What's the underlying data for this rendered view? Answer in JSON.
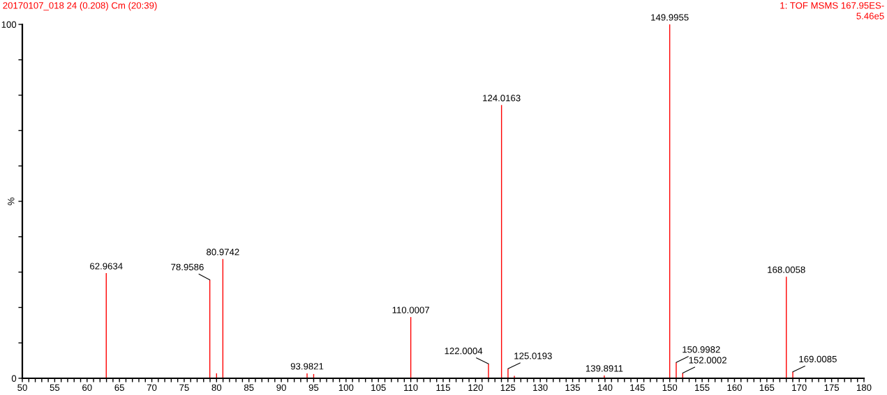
{
  "chart_data": {
    "type": "bar",
    "title": "20170107_018 24 (0.208) Cm (20:39)",
    "subtitle": "1: TOF MSMS 167.95ES-\n5.46e5",
    "ylabel": "%",
    "x": [
      62.9634,
      78.9586,
      80.0,
      80.9742,
      93.9821,
      95.0,
      110.0007,
      122.0004,
      124.0163,
      125.0193,
      126.0,
      139.8911,
      149.9955,
      150.9982,
      152.0002,
      168.0058,
      169.0085
    ],
    "values": [
      29.7,
      27.8,
      1.4,
      33.7,
      1.4,
      1.2,
      17.3,
      4.1,
      77.2,
      2.7,
      0.7,
      0.8,
      100,
      4.5,
      1.5,
      28.7,
      1.8
    ],
    "color": "#ff0000",
    "annotations": [
      {
        "text": "62.9634",
        "x": 62.9634,
        "y": 29.7
      },
      {
        "text": "78.9586",
        "x": 78.9586,
        "y": 27.8
      },
      {
        "text": "80.9742",
        "x": 80.9742,
        "y": 33.7
      },
      {
        "text": "93.9821",
        "x": 93.9821,
        "y": 1.4
      },
      {
        "text": "110.0007",
        "x": 110.0007,
        "y": 17.3
      },
      {
        "text": "122.0004",
        "x": 122.0004,
        "y": 4.1
      },
      {
        "text": "124.0163",
        "x": 124.0163,
        "y": 77.2
      },
      {
        "text": "125.0193",
        "x": 125.0193,
        "y": 2.7
      },
      {
        "text": "139.8911",
        "x": 139.8911,
        "y": 0.8
      },
      {
        "text": "149.9955",
        "x": 149.9955,
        "y": 100
      },
      {
        "text": "150.9982",
        "x": 150.9982,
        "y": 4.5
      },
      {
        "text": "152.0002",
        "x": 152.0002,
        "y": 1.5
      },
      {
        "text": "168.0058",
        "x": 168.0058,
        "y": 28.7
      },
      {
        "text": "169.0085",
        "x": 169.0085,
        "y": 1.8
      }
    ],
    "xlim": [
      50,
      180
    ],
    "ylim": [
      0,
      100
    ],
    "xticks": [
      50,
      {
        "value": 51,
        "label": null
      },
      {
        "value": 52,
        "label": null
      },
      {
        "value": 53,
        "label": null
      },
      {
        "value": 54,
        "label": null
      },
      55,
      {
        "value": 56,
        "label": null
      },
      {
        "value": 57,
        "label": null
      },
      {
        "value": 58,
        "label": null
      },
      {
        "value": 59,
        "label": null
      },
      60,
      {
        "value": 61,
        "label": null
      },
      {
        "value": 62,
        "label": null
      },
      {
        "value": 63,
        "label": null
      },
      {
        "value": 64,
        "label": null
      },
      65,
      {
        "value": 66,
        "label": null
      },
      {
        "value": 67,
        "label": null
      },
      {
        "value": 68,
        "label": null
      },
      {
        "value": 69,
        "label": null
      },
      70,
      {
        "value": 71,
        "label": null
      },
      {
        "value": 72,
        "label": null
      },
      {
        "value": 73,
        "label": null
      },
      {
        "value": 74,
        "label": null
      },
      75,
      {
        "value": 76,
        "label": null
      },
      {
        "value": 77,
        "label": null
      },
      {
        "value": 78,
        "label": null
      },
      {
        "value": 79,
        "label": null
      },
      80,
      {
        "value": 81,
        "label": null
      },
      {
        "value": 82,
        "label": null
      },
      {
        "value": 83,
        "label": null
      },
      {
        "value": 84,
        "label": null
      },
      85,
      {
        "value": 86,
        "label": null
      },
      {
        "value": 87,
        "label": null
      },
      {
        "value": 88,
        "label": null
      },
      {
        "value": 89,
        "label": null
      },
      90,
      {
        "value": 91,
        "label": null
      },
      {
        "value": 92,
        "label": null
      },
      {
        "value": 93,
        "label": null
      },
      {
        "value": 94,
        "label": null
      },
      95,
      {
        "value": 96,
        "label": null
      },
      {
        "value": 97,
        "label": null
      },
      {
        "value": 98,
        "label": null
      },
      {
        "value": 99,
        "label": null
      },
      100,
      {
        "value": 101,
        "label": null
      },
      {
        "value": 102,
        "label": null
      },
      {
        "value": 103,
        "label": null
      },
      {
        "value": 104,
        "label": null
      },
      105,
      {
        "value": 106,
        "label": null
      },
      {
        "value": 107,
        "label": null
      },
      {
        "value": 108,
        "label": null
      },
      {
        "value": 109,
        "label": null
      },
      110,
      {
        "value": 111,
        "label": null
      },
      {
        "value": 112,
        "label": null
      },
      {
        "value": 113,
        "label": null
      },
      {
        "value": 114,
        "label": null
      },
      115,
      {
        "value": 116,
        "label": null
      },
      {
        "value": 117,
        "label": null
      },
      {
        "value": 118,
        "label": null
      },
      {
        "value": 119,
        "label": null
      },
      120,
      {
        "value": 121,
        "label": null
      },
      {
        "value": 122,
        "label": null
      },
      {
        "value": 123,
        "label": null
      },
      {
        "value": 124,
        "label": null
      },
      125,
      {
        "value": 126,
        "label": null
      },
      {
        "value": 127,
        "label": null
      },
      {
        "value": 128,
        "label": null
      },
      {
        "value": 129,
        "label": null
      },
      130,
      {
        "value": 131,
        "label": null
      },
      {
        "value": 132,
        "label": null
      },
      {
        "value": 133,
        "label": null
      },
      {
        "value": 134,
        "label": null
      },
      135,
      {
        "value": 136,
        "label": null
      },
      {
        "value": 137,
        "label": null
      },
      {
        "value": 138,
        "label": null
      },
      {
        "value": 139,
        "label": null
      },
      140,
      {
        "value": 141,
        "label": null
      },
      {
        "value": 142,
        "label": null
      },
      {
        "value": 143,
        "label": null
      },
      {
        "value": 144,
        "label": null
      },
      145,
      {
        "value": 146,
        "label": null
      },
      {
        "value": 147,
        "label": null
      },
      {
        "value": 148,
        "label": null
      },
      {
        "value": 149,
        "label": null
      },
      150,
      {
        "value": 151,
        "label": null
      },
      {
        "value": 152,
        "label": null
      },
      {
        "value": 153,
        "label": null
      },
      {
        "value": 154,
        "label": null
      },
      155,
      {
        "value": 156,
        "label": null
      },
      {
        "value": 157,
        "label": null
      },
      {
        "value": 158,
        "label": null
      },
      {
        "value": 159,
        "label": null
      },
      160,
      {
        "value": 161,
        "label": null
      },
      {
        "value": 162,
        "label": null
      },
      {
        "value": 163,
        "label": null
      },
      {
        "value": 164,
        "label": null
      },
      165,
      {
        "value": 166,
        "label": null
      },
      {
        "value": 167,
        "label": null
      },
      {
        "value": 168,
        "label": null
      },
      {
        "value": 169,
        "label": null
      },
      170,
      {
        "value": 171,
        "label": null
      },
      {
        "value": 172,
        "label": null
      },
      {
        "value": 173,
        "label": null
      },
      {
        "value": 174,
        "label": null
      },
      175,
      {
        "value": 176,
        "label": null
      },
      {
        "value": 177,
        "label": null
      },
      {
        "value": 178,
        "label": null
      },
      {
        "value": 179,
        "label": null
      },
      180
    ],
    "yticks": [
      0,
      {
        "value": 10,
        "label": null
      },
      {
        "value": 20,
        "label": null
      },
      {
        "value": 30,
        "label": null
      },
      {
        "value": 40,
        "label": null
      },
      {
        "value": 50,
        "label": null
      },
      {
        "value": 60,
        "label": null
      },
      {
        "value": 70,
        "label": null
      },
      {
        "value": 80,
        "label": null
      },
      {
        "value": 90,
        "label": null
      },
      100
    ],
    "grid": false,
    "legend": false
  }
}
